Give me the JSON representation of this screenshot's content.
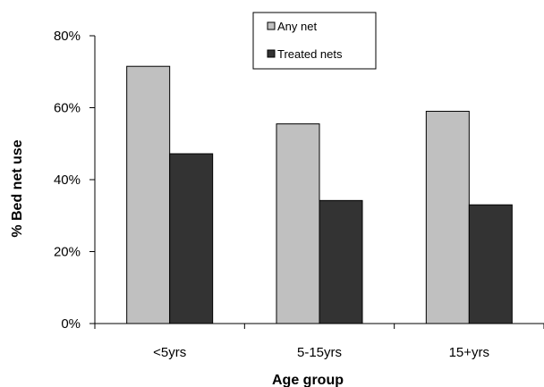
{
  "chart_data": {
    "type": "bar",
    "categories": [
      "<5yrs",
      "5-15yrs",
      "15+yrs"
    ],
    "series": [
      {
        "name": "Any net",
        "values": [
          71.5,
          55.5,
          59
        ],
        "color": "#c0c0c0"
      },
      {
        "name": "Treated nets",
        "values": [
          47.2,
          34.2,
          33
        ],
        "color": "#333333"
      }
    ],
    "xlabel": "Age group",
    "ylabel": "% Bed net use",
    "ylim": [
      0,
      80
    ],
    "yticks": [
      0,
      20,
      40,
      60,
      80
    ],
    "ytick_labels": [
      "0%",
      "20%",
      "40%",
      "60%",
      "80%"
    ],
    "grid": false,
    "legend_position": "top-center"
  }
}
